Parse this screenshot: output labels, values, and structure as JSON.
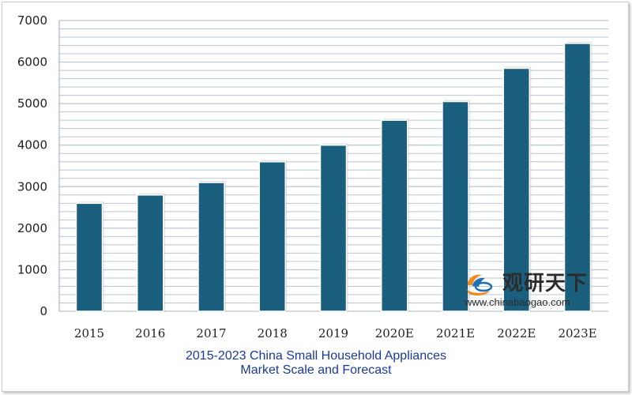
{
  "chart_data": {
    "type": "bar",
    "title": "2015-2023 China Small Household Appliances Market Scale and Forecast",
    "title_lines": [
      "2015-2023 China Small Household Appliances",
      "Market Scale and Forecast"
    ],
    "categories": [
      "2015",
      "2016",
      "2017",
      "2018",
      "2019",
      "2020E",
      "2021E",
      "2022E",
      "2023E"
    ],
    "values": [
      2600,
      2800,
      3100,
      3600,
      4000,
      4600,
      5050,
      5850,
      6450
    ],
    "ylim": [
      0,
      7000
    ],
    "yticks": [
      "0",
      "1000",
      "2000",
      "3000",
      "4000",
      "5000",
      "6000",
      "7000"
    ],
    "grid": true,
    "legend": "none",
    "bar_color": "#1b5f7f",
    "grid_color": "#b8c7d2",
    "title_color": "#1a3a9a"
  },
  "watermark": {
    "cn_text": "观研天下",
    "url": "www.chinabaogao.com",
    "logo_icon": "chinabaogao-logo-icon"
  }
}
